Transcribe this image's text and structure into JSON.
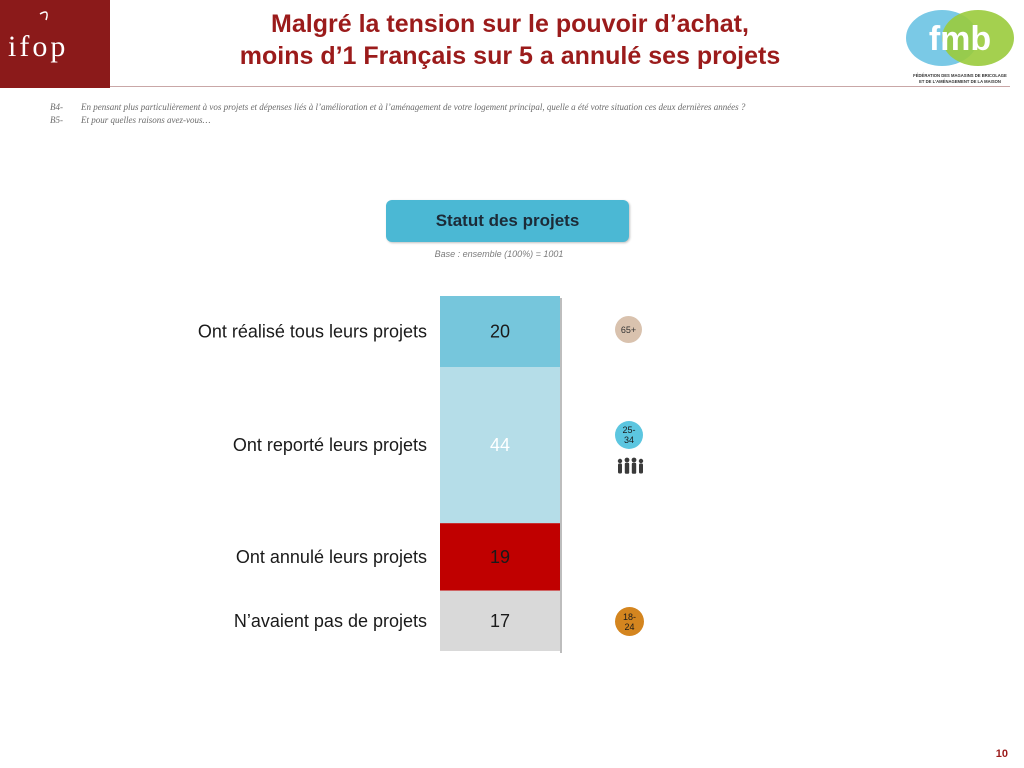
{
  "header": {
    "title_line1": "Malgré la tension sur le pouvoir d’achat,",
    "title_line2": "moins d’1 Français sur 5 a annulé ses projets",
    "logo_left_text": "ifop",
    "logo_right_text": "fmb",
    "logo_right_caption_line1": "FÉDÉRATION DES MAGASINS DE BRICOLAGE",
    "logo_right_caption_line2": "ET DE L'AMÉNAGEMENT DE LA MAISON"
  },
  "questions": [
    {
      "code": "B4-",
      "text": "En pensant plus particulièrement à vos projets et dépenses liés à l’amélioration et à l’aménagement de votre logement principal, quelle a été votre situation ces deux dernières années ?"
    },
    {
      "code": "B5-",
      "text": "Et pour quelles raisons avez-vous…"
    }
  ],
  "status_title": "Statut des projets",
  "base_note": "Base : ensemble (100%) = 1001",
  "chart_data": {
    "type": "bar",
    "stacked": true,
    "orientation": "vertical",
    "categories": [
      "Ont réalisé tous leurs projets",
      "Ont reporté leurs projets",
      "Ont annulé leurs projets",
      "N’avaient pas de projets"
    ],
    "values": [
      20,
      44,
      19,
      17
    ],
    "colors": [
      "#76c6dc",
      "#b5dde8",
      "#c00000",
      "#d9d9d9"
    ],
    "label_colors": [
      "#1a1a1a",
      "#ffffff",
      "#1a1a1a",
      "#1a1a1a"
    ],
    "total": 100
  },
  "badges": [
    {
      "label": "65+",
      "row": 0
    },
    {
      "label": "25-\n34",
      "row": 1
    },
    {
      "label": "18-\n24",
      "row": 3
    }
  ],
  "icons": {
    "group": "family-icon"
  },
  "page_number": "10"
}
